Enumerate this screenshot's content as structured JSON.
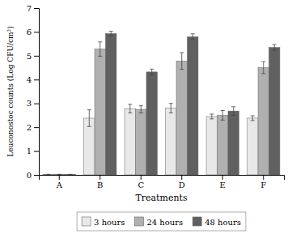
{
  "chart_data": {
    "type": "bar",
    "categories": [
      "A",
      "B",
      "C",
      "D",
      "E",
      "F"
    ],
    "series": [
      {
        "name": "3 hours",
        "color": "#e8e8e8",
        "values": [
          0.02,
          2.38,
          2.78,
          2.8,
          2.45,
          2.38
        ],
        "errors": [
          0.0,
          0.35,
          0.18,
          0.2,
          0.1,
          0.1
        ]
      },
      {
        "name": "24 hours",
        "color": "#b0b0b0",
        "values": [
          0.02,
          5.28,
          2.75,
          4.78,
          2.5,
          4.5
        ],
        "errors": [
          0.0,
          0.3,
          0.15,
          0.35,
          0.2,
          0.25
        ]
      },
      {
        "name": "48 hours",
        "color": "#606060",
        "values": [
          0.02,
          5.93,
          4.32,
          5.8,
          2.68,
          5.35
        ],
        "errors": [
          0.0,
          0.1,
          0.12,
          0.12,
          0.18,
          0.12
        ]
      }
    ],
    "xlabel": "Treatments",
    "ylabel": "Leuconostoc counts (Log CFU/cm²)",
    "ylim": [
      0,
      7
    ],
    "yticks": [
      0,
      1,
      2,
      3,
      4,
      5,
      6,
      7
    ],
    "grid": false,
    "legend": "bottom"
  }
}
